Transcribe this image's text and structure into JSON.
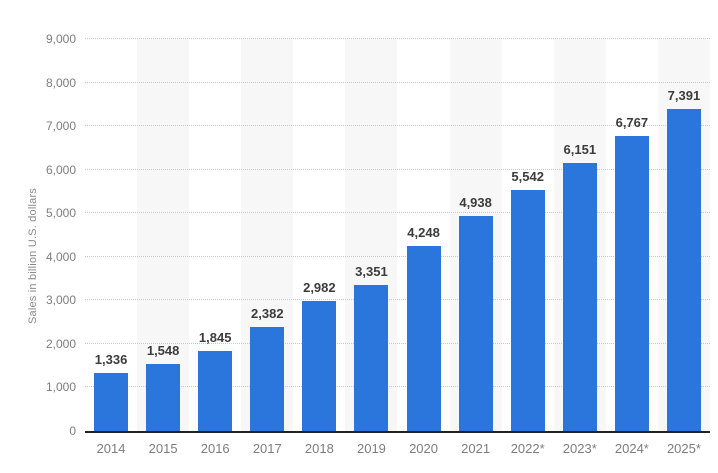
{
  "chart_data": {
    "type": "bar",
    "title": "",
    "xlabel": "",
    "ylabel": "Sales in billion U.S. dollars",
    "categories": [
      "2014",
      "2015",
      "2016",
      "2017",
      "2018",
      "2019",
      "2020",
      "2021",
      "2022*",
      "2023*",
      "2024*",
      "2025*"
    ],
    "values": [
      1336,
      1548,
      1845,
      2382,
      2982,
      3351,
      4248,
      4938,
      5542,
      6151,
      6767,
      7391
    ],
    "value_labels": [
      "1,336",
      "1,548",
      "1,845",
      "2,382",
      "2,982",
      "3,351",
      "4,248",
      "4,938",
      "5,542",
      "6,151",
      "6,767",
      "7,391"
    ],
    "ylim": [
      0,
      9000
    ],
    "ytick_step": 1000,
    "ytick_labels": [
      "0",
      "1,000",
      "2,000",
      "3,000",
      "4,000",
      "5,000",
      "6,000",
      "7,000",
      "8,000",
      "9,000"
    ],
    "grid": "horizontal-dotted",
    "legend": "none",
    "background_stripes": "alternating-odd-columns",
    "colors": {
      "bar": "#2b76dd",
      "value_label": "#3c3c3c",
      "tick_label": "#7d7d7d",
      "axis_title": "#8a8a8a",
      "axis_line": "#222222",
      "gridline": "#c8c8c8",
      "column_stripe": "#f7f7f7",
      "background": "#ffffff"
    }
  }
}
